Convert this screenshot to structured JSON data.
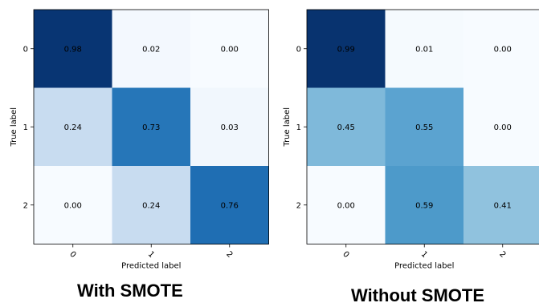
{
  "chart_data": [
    {
      "type": "heatmap",
      "caption": "With SMOTE",
      "xlabel": "Predicted label",
      "ylabel": "True label",
      "row_labels": [
        "0",
        "1",
        "2"
      ],
      "col_labels": [
        "0",
        "1",
        "2"
      ],
      "values": [
        [
          0.98,
          0.02,
          0.0
        ],
        [
          0.24,
          0.73,
          0.03
        ],
        [
          0.0,
          0.24,
          0.76
        ]
      ],
      "value_labels": [
        [
          "0.98",
          "0.02",
          "0.00"
        ],
        [
          "0.24",
          "0.73",
          "0.03"
        ],
        [
          "0.00",
          "0.24",
          "0.76"
        ]
      ],
      "colormap": "Blues",
      "vmin": 0,
      "vmax": 1
    },
    {
      "type": "heatmap",
      "caption": "Without SMOTE",
      "xlabel": "Predicted label",
      "ylabel": "True label",
      "row_labels": [
        "0",
        "1",
        "2"
      ],
      "col_labels": [
        "0",
        "1",
        "2"
      ],
      "values": [
        [
          0.99,
          0.01,
          0.0
        ],
        [
          0.45,
          0.55,
          0.0
        ],
        [
          0.0,
          0.59,
          0.41
        ]
      ],
      "value_labels": [
        [
          "0.99",
          "0.01",
          "0.00"
        ],
        [
          "0.45",
          "0.55",
          "0.00"
        ],
        [
          "0.00",
          "0.59",
          "0.41"
        ]
      ],
      "colormap": "Blues",
      "vmin": 0,
      "vmax": 1
    }
  ]
}
